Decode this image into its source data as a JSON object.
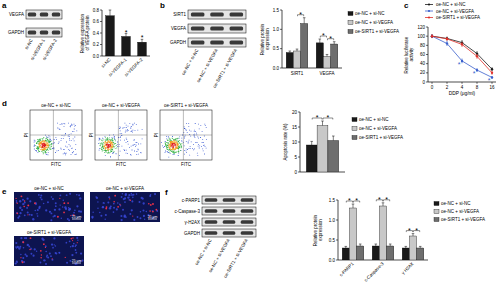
{
  "chart_data": [
    {
      "type": "bar",
      "y_label": "Relative expression of VEGFA protein",
      "categories": [
        "si-NC",
        "si-VEGFA-1",
        "si-VEGFA-2"
      ],
      "values": [
        0.7,
        0.34,
        0.24
      ],
      "errors": [
        0.1,
        0.05,
        0.05
      ],
      "color": "#1a1a1a",
      "ylim": [
        0,
        0.8
      ],
      "yticks": [
        {
          "value": 0,
          "label": "0.0"
        },
        0.2,
        0.4,
        0.6,
        0.8
      ],
      "annotations": [
        {
          "text": "*",
          "category": "si-VEGFA-1"
        },
        {
          "text": "*",
          "category": "si-VEGFA-2"
        }
      ]
    },
    {
      "type": "bar",
      "y_label": "Relative protein expression",
      "categories": [
        "SIRT1",
        "VEGFA"
      ],
      "series": [
        {
          "name": "oe-NC + si-NC",
          "color": "#1a1a1a",
          "values": [
            0.4,
            0.65
          ],
          "errors": [
            0.04,
            0.1
          ]
        },
        {
          "name": "oe-NC + si-VEGFA",
          "color": "#c8c8c8",
          "values": [
            0.44,
            0.3
          ],
          "errors": [
            0.05,
            0.05
          ]
        },
        {
          "name": "oe-SIRT1 + si-VEGFA",
          "color": "#6e6e6e",
          "values": [
            1.15,
            0.62
          ],
          "errors": [
            0.15,
            0.06
          ]
        }
      ],
      "ylim": [
        0,
        1.5
      ],
      "yticks": [
        {
          "value": 0,
          "label": "0.0"
        },
        0.5,
        {
          "value": 1,
          "label": "1.0"
        },
        1.5
      ],
      "legend": "right",
      "annotations": [
        {
          "text": "*",
          "category": "SIRT1",
          "from": "oe-NC + si-VEGFA",
          "to": "oe-SIRT1 + si-VEGFA"
        },
        {
          "text": "*",
          "category": "VEGFA",
          "from": "oe-NC + si-NC",
          "to": "oe-NC + si-VEGFA"
        },
        {
          "text": "*",
          "category": "VEGFA",
          "from": "oe-NC + si-VEGFA",
          "to": "oe-SIRT1 + si-VEGFA"
        }
      ]
    },
    {
      "type": "line",
      "x_label": "DDP (μg/ml)",
      "y_label": "Relative luciferase activity",
      "categories": [
        "0",
        "2",
        "4",
        "8",
        "16"
      ],
      "series": [
        {
          "name": "oe-NC + si-NC",
          "color": "#1a1a1a",
          "marker": "circle",
          "values": [
            100,
            95,
            86,
            62,
            28
          ],
          "errors": [
            3,
            3,
            4,
            4,
            3
          ]
        },
        {
          "name": "oe-NC + si-VEGFA",
          "color": "#3a5fcd",
          "marker": "circle",
          "values": [
            100,
            84,
            46,
            26,
            10
          ],
          "errors": [
            3,
            4,
            4,
            3,
            2
          ]
        },
        {
          "name": "oe-SIRT1 + si-VEGFA",
          "color": "#e0302a",
          "marker": "circle",
          "values": [
            100,
            94,
            82,
            56,
            20
          ],
          "errors": [
            3,
            3,
            4,
            4,
            3
          ]
        }
      ],
      "ylim": [
        0,
        120
      ],
      "yticks": [
        0,
        20,
        40,
        60,
        80,
        100,
        120
      ],
      "legend": "top",
      "annotations": [
        {
          "text": "*",
          "series": "oe-NC + si-VEGFA",
          "category": "4"
        },
        {
          "text": "*",
          "series": "oe-NC + si-VEGFA",
          "category": "8"
        },
        {
          "text": "*",
          "series": "oe-NC + si-VEGFA",
          "category": "16"
        }
      ]
    },
    {
      "type": "bar",
      "y_label": "Apoptosis rate (%)",
      "categories": [
        null
      ],
      "series": [
        {
          "name": "oe-NC + si-NC",
          "color": "#1a1a1a",
          "values": [
            9
          ],
          "errors": [
            1.2
          ]
        },
        {
          "name": "oe-NC + si-VEGFA",
          "color": "#c8c8c8",
          "values": [
            15.5
          ],
          "errors": [
            1.5
          ]
        },
        {
          "name": "oe-SIRT1 + si-VEGFA",
          "color": "#6e6e6e",
          "values": [
            10.5
          ],
          "errors": [
            1.5
          ]
        }
      ],
      "ylim": [
        0,
        20
      ],
      "yticks": [
        0,
        5,
        10,
        15,
        20
      ],
      "legend": "right",
      "annotations": [
        {
          "text": "*",
          "from": "oe-NC + si-NC",
          "to": "oe-NC + si-VEGFA"
        },
        {
          "text": "*",
          "from": "oe-NC + si-VEGFA",
          "to": "oe-SIRT1 + si-VEGFA"
        }
      ]
    },
    {
      "type": "bar",
      "y_label": "Relative protein expression",
      "categories": [
        "c-PARP1",
        "c-Caspase-3",
        "γ H2AX"
      ],
      "series": [
        {
          "name": "oe-NC + si-NC",
          "color": "#1a1a1a",
          "values": [
            0.3,
            0.35,
            0.3
          ],
          "errors": [
            0.04,
            0.05,
            0.04
          ]
        },
        {
          "name": "oe-NC + si-VEGFA",
          "color": "#c8c8c8",
          "values": [
            1.3,
            1.35,
            0.6
          ],
          "errors": [
            0.1,
            0.08,
            0.06
          ]
        },
        {
          "name": "oe-SIRT1 + si-VEGFA",
          "color": "#6e6e6e",
          "values": [
            0.35,
            0.35,
            0.3
          ],
          "errors": [
            0.05,
            0.05,
            0.04
          ]
        }
      ],
      "ylim": [
        0,
        1.5
      ],
      "yticks": [
        {
          "value": 0,
          "label": "0.0"
        },
        0.5,
        {
          "value": 1,
          "label": "1.0"
        },
        1.5
      ],
      "legend": "right",
      "annotations": [
        {
          "text": "*",
          "category": "c-PARP1",
          "from": "oe-NC + si-NC",
          "to": "oe-NC + si-VEGFA"
        },
        {
          "text": "*",
          "category": "c-PARP1",
          "from": "oe-NC + si-VEGFA",
          "to": "oe-SIRT1 + si-VEGFA"
        },
        {
          "text": "*",
          "category": "c-Caspase-3",
          "from": "oe-NC + si-NC",
          "to": "oe-NC + si-VEGFA"
        },
        {
          "text": "*",
          "category": "c-Caspase-3",
          "from": "oe-NC + si-VEGFA",
          "to": "oe-SIRT1 + si-VEGFA"
        },
        {
          "text": "*",
          "category": "γ H2AX",
          "from": "oe-NC + si-NC",
          "to": "oe-NC + si-VEGFA"
        },
        {
          "text": "*",
          "category": "γ H2AX",
          "from": "oe-NC + si-VEGFA",
          "to": "oe-SIRT1 + si-VEGFA"
        }
      ]
    }
  ],
  "figure": {
    "panel_letters": [
      "a",
      "b",
      "c",
      "d",
      "e",
      "f"
    ],
    "blots": [
      {
        "lanes": [
          "si-NC",
          "si-VEGFA-1",
          "si-VEGFA-2"
        ],
        "rows": [
          "VEGFA",
          "GAPDH"
        ]
      },
      {
        "lanes": [
          "oe-NC + si-NC",
          "oe-NC + si-VEGFA",
          "oe-SIRT1 + si-VEGFA"
        ],
        "rows": [
          "SIRT1",
          "VEGFA",
          "GAPDH"
        ]
      },
      {
        "lanes": [
          "oe-NC + si-NC",
          "oe-NC + si-VEGFA",
          "oe-SIRT1 + si-VEGFA"
        ],
        "rows": [
          "c-PARP1",
          "c-Caspase-3",
          "γ-H2AX",
          "GAPDH"
        ]
      }
    ],
    "flow": {
      "titles": [
        "oe-NC + si-NC",
        "oe-NC + si-VEGFA",
        "oe-SIRT1 + si-VEGFA"
      ],
      "x_label": "FITC",
      "y_label": "PI"
    },
    "images": {
      "titles": [
        "oe-NC + si-NC",
        "oe-NC + si-VEGFA",
        "oe-SIRT1 + si-VEGFA"
      ],
      "scale_bar": "25 μm"
    }
  }
}
